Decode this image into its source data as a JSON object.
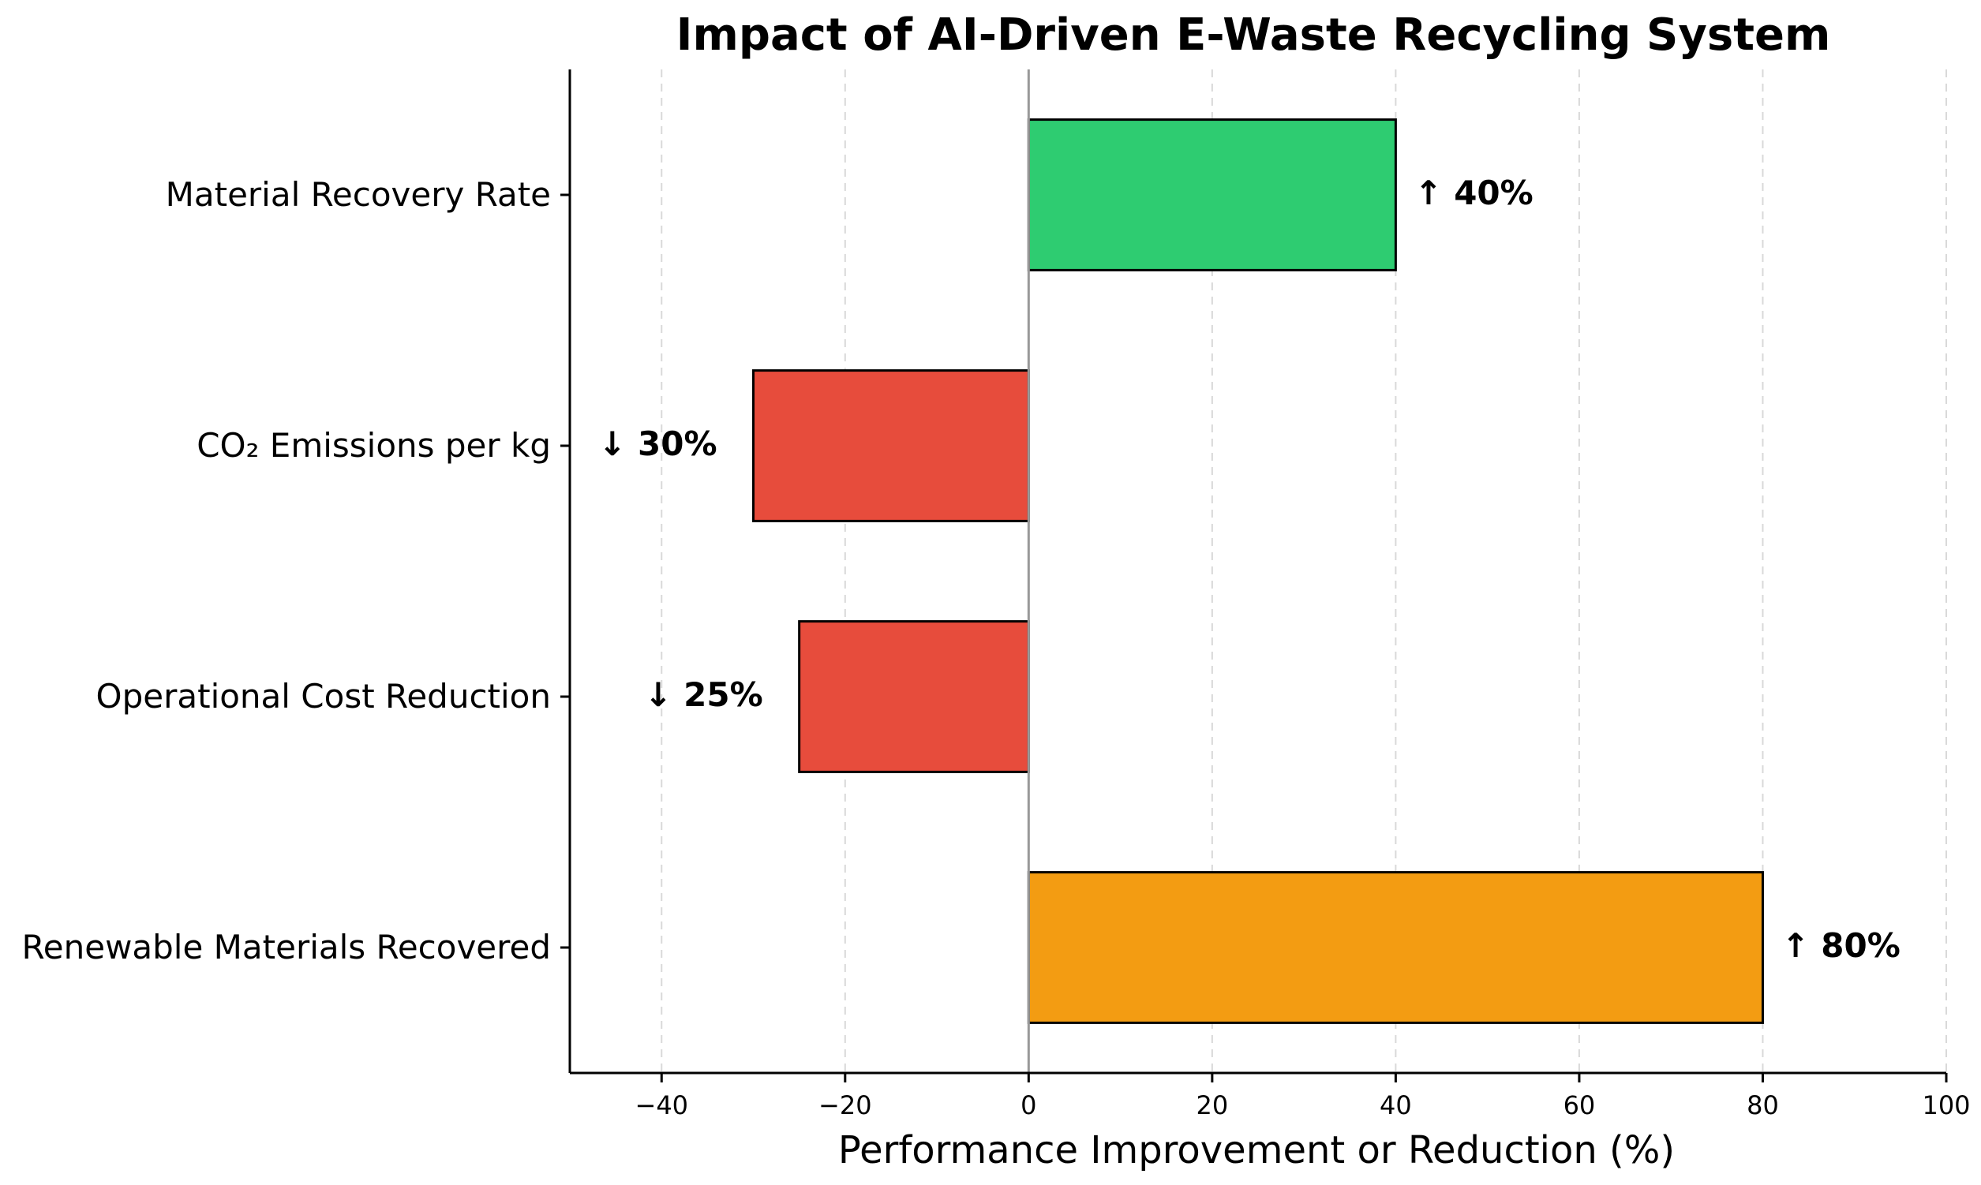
{
  "chart_data": {
    "type": "bar",
    "orientation": "horizontal",
    "title": "Impact of AI-Driven E-Waste Recycling System",
    "xlabel": "Performance Improvement or Reduction (%)",
    "ylabel": "",
    "xlim": [
      -50,
      100
    ],
    "xticks": [
      -40,
      -20,
      0,
      20,
      40,
      60,
      80,
      100
    ],
    "xtick_labels": [
      "−40",
      "−20",
      "0",
      "20",
      "40",
      "60",
      "80",
      "100"
    ],
    "grid": "vertical dashed",
    "categories": [
      "Material Recovery Rate",
      "CO₂ Emissions per kg",
      "Operational Cost Reduction",
      "Renewable Materials Recovered"
    ],
    "values": [
      40,
      -30,
      -25,
      80
    ],
    "data_labels": [
      "↑ 40%",
      "↓ 30%",
      "↓ 25%",
      "↑ 80%"
    ],
    "colors": [
      "#2ecc71",
      "#e74c3c",
      "#e74c3c",
      "#f39c12"
    ]
  }
}
